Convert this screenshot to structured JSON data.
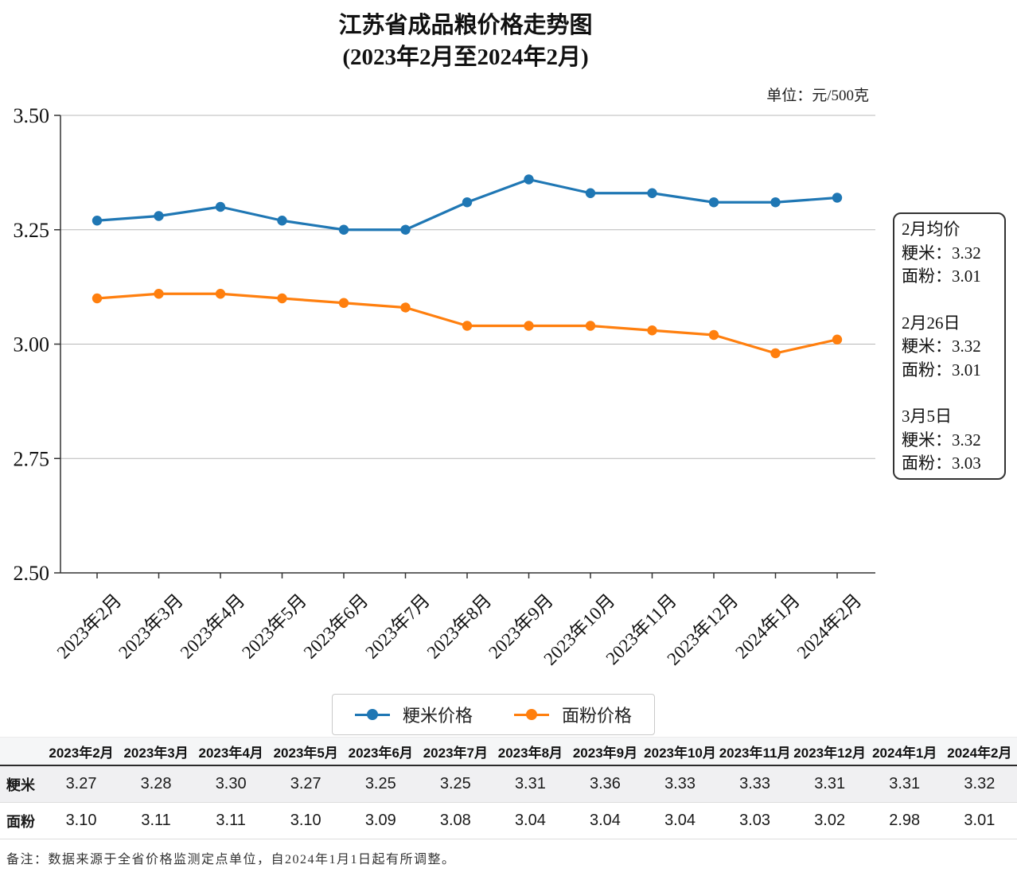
{
  "title": {
    "line1": "江苏省成品粮价格走势图",
    "line2": "(2023年2月至2024年2月)"
  },
  "unit_label": "单位：元/500克",
  "chart_data": {
    "type": "line",
    "categories": [
      "2023年2月",
      "2023年3月",
      "2023年4月",
      "2023年5月",
      "2023年6月",
      "2023年7月",
      "2023年8月",
      "2023年9月",
      "2023年10月",
      "2023年11月",
      "2023年12月",
      "2024年1月",
      "2024年2月"
    ],
    "series": [
      {
        "name": "粳米价格",
        "color": "#1f77b4",
        "values": [
          3.27,
          3.28,
          3.3,
          3.27,
          3.25,
          3.25,
          3.31,
          3.36,
          3.33,
          3.33,
          3.31,
          3.31,
          3.32
        ]
      },
      {
        "name": "面粉价格",
        "color": "#ff7f0e",
        "values": [
          3.1,
          3.11,
          3.11,
          3.1,
          3.09,
          3.08,
          3.04,
          3.04,
          3.04,
          3.03,
          3.02,
          2.98,
          3.01
        ]
      }
    ],
    "ylim": [
      2.5,
      3.5
    ],
    "yticks": [
      2.5,
      2.75,
      3.0,
      3.25,
      3.5
    ],
    "grid": true,
    "legend_position": "bottom"
  },
  "annotation_box": {
    "sections": [
      {
        "heading": "2月均价",
        "lines": [
          "粳米：3.32",
          "面粉：3.01"
        ]
      },
      {
        "heading": "2月26日",
        "lines": [
          "粳米：3.32",
          "面粉：3.01"
        ]
      },
      {
        "heading": "3月5日",
        "lines": [
          "粳米：3.32",
          "面粉：3.03"
        ]
      }
    ]
  },
  "table": {
    "header": [
      "",
      "2023年2月",
      "2023年3月",
      "2023年4月",
      "2023年5月",
      "2023年6月",
      "2023年7月",
      "2023年8月",
      "2023年9月",
      "2023年10月",
      "2023年11月",
      "2023年12月",
      "2024年1月",
      "2024年2月"
    ],
    "rows": [
      {
        "label": "粳米",
        "values": [
          "3.27",
          "3.28",
          "3.30",
          "3.27",
          "3.25",
          "3.25",
          "3.31",
          "3.36",
          "3.33",
          "3.33",
          "3.31",
          "3.31",
          "3.32"
        ]
      },
      {
        "label": "面粉",
        "values": [
          "3.10",
          "3.11",
          "3.11",
          "3.10",
          "3.09",
          "3.08",
          "3.04",
          "3.04",
          "3.04",
          "3.03",
          "3.02",
          "2.98",
          "3.01"
        ]
      }
    ]
  },
  "footnote": "备注：数据来源于全省价格监测定点单位，自2024年1月1日起有所调整。"
}
